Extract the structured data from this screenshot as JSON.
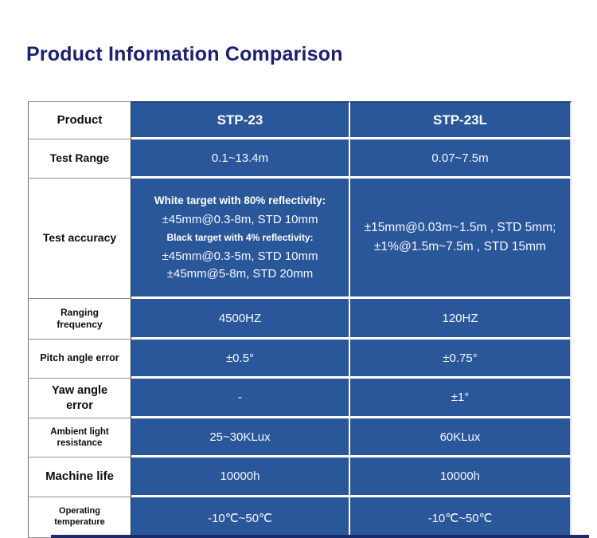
{
  "title": "Product Information Comparison",
  "colors": {
    "title_navy": "#1a2173",
    "cell_blue": "#2a579a",
    "bottom_edge_navy": "#1b2b6b",
    "label_text": "#0d0d0d",
    "value_text": "#f4f8fd"
  },
  "table": {
    "header": {
      "product_label": "Product",
      "col_stp23": "STP-23",
      "col_stp23l": "STP-23L"
    },
    "test_range": {
      "label": "Test Range",
      "stp23": "0.1~13.4m",
      "stp23l": "0.07~7.5m"
    },
    "test_accuracy": {
      "label": "Test accuracy",
      "stp23": {
        "white_heading": "White target with 80% reflectivity:",
        "white_value": "±45mm@0.3-8m, STD 10mm",
        "black_heading": "Black target with 4% reflectivity:",
        "black_value_1": "±45mm@0.3-5m, STD 10mm",
        "black_value_2": "±45mm@5-8m, STD 20mm"
      },
      "stp23l": {
        "line_1": "±15mm@0.03m~1.5m , STD 5mm;",
        "line_2": "±1%@1.5m~7.5m , STD 15mm"
      }
    },
    "rows": [
      {
        "label": "Ranging frequency",
        "stp23": "4500HZ",
        "stp23l": "120HZ"
      },
      {
        "label": "Pitch angle error",
        "stp23": "±0.5°",
        "stp23l": "±0.75°"
      },
      {
        "label": "Yaw angle error",
        "stp23": "-",
        "stp23l": "±1°"
      },
      {
        "label": "Ambient light resistance",
        "stp23": "25~30KLux",
        "stp23l": "60KLux"
      },
      {
        "label": "Machine life",
        "stp23": "10000h",
        "stp23l": "10000h"
      },
      {
        "label": "Operating temperature",
        "stp23": "-10℃~50℃",
        "stp23l": "-10℃~50℃"
      }
    ]
  }
}
